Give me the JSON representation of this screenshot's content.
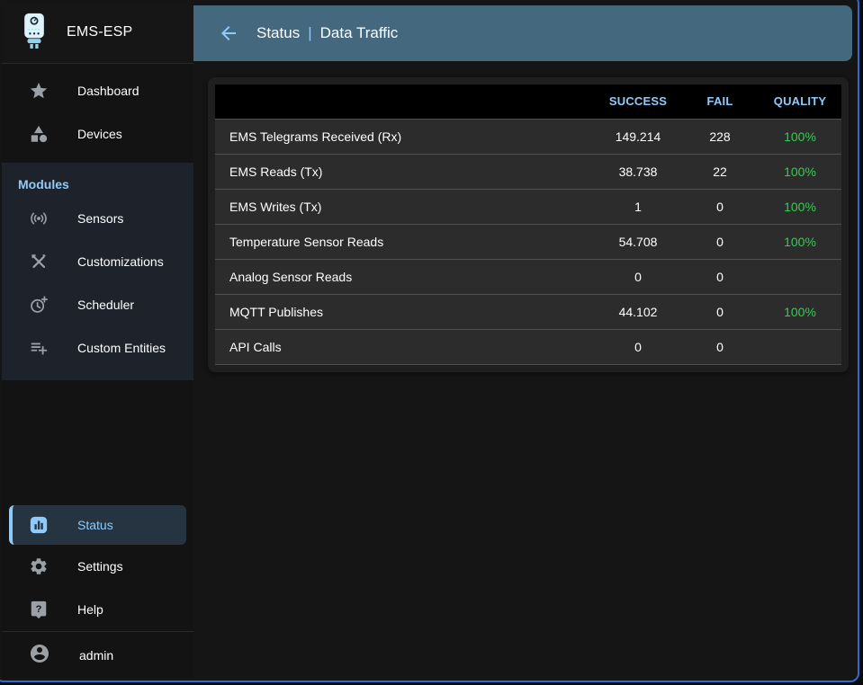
{
  "app": {
    "brand": "EMS-ESP"
  },
  "header": {
    "back_icon": "arrow-back-icon",
    "section": "Status",
    "separator": "|",
    "page": "Data Traffic"
  },
  "sidebar": {
    "main_items": [
      {
        "label": "Dashboard",
        "icon": "star-icon"
      },
      {
        "label": "Devices",
        "icon": "category-icon"
      }
    ],
    "modules_label": "Modules",
    "module_items": [
      {
        "label": "Sensors",
        "icon": "sensors-icon"
      },
      {
        "label": "Customizations",
        "icon": "construction-icon"
      },
      {
        "label": "Scheduler",
        "icon": "scheduler-icon"
      },
      {
        "label": "Custom Entities",
        "icon": "playlist-add-icon"
      }
    ],
    "bottom_items": [
      {
        "label": "Status",
        "icon": "analytics-icon",
        "active": true
      },
      {
        "label": "Settings",
        "icon": "gear-icon",
        "active": false
      },
      {
        "label": "Help",
        "icon": "help-icon",
        "active": false
      }
    ],
    "user": {
      "label": "admin",
      "icon": "account-icon"
    }
  },
  "table": {
    "columns": [
      "",
      "SUCCESS",
      "FAIL",
      "QUALITY"
    ],
    "rows": [
      {
        "name": "EMS Telegrams Received (Rx)",
        "success": "149.214",
        "fail": "228",
        "quality": "100%"
      },
      {
        "name": "EMS Reads (Tx)",
        "success": "38.738",
        "fail": "22",
        "quality": "100%"
      },
      {
        "name": "EMS Writes (Tx)",
        "success": "1",
        "fail": "0",
        "quality": "100%"
      },
      {
        "name": "Temperature Sensor Reads",
        "success": "54.708",
        "fail": "0",
        "quality": "100%"
      },
      {
        "name": "Analog Sensor Reads",
        "success": "0",
        "fail": "0",
        "quality": ""
      },
      {
        "name": "MQTT Publishes",
        "success": "44.102",
        "fail": "0",
        "quality": "100%"
      },
      {
        "name": "API Calls",
        "success": "0",
        "fail": "0",
        "quality": ""
      }
    ]
  },
  "colors": {
    "accent": "#90caf9",
    "header_bar": "#44687d",
    "quality_green": "#2fcf4f",
    "modules_bg": "#1d222b",
    "active_item_bg": "#263340"
  }
}
